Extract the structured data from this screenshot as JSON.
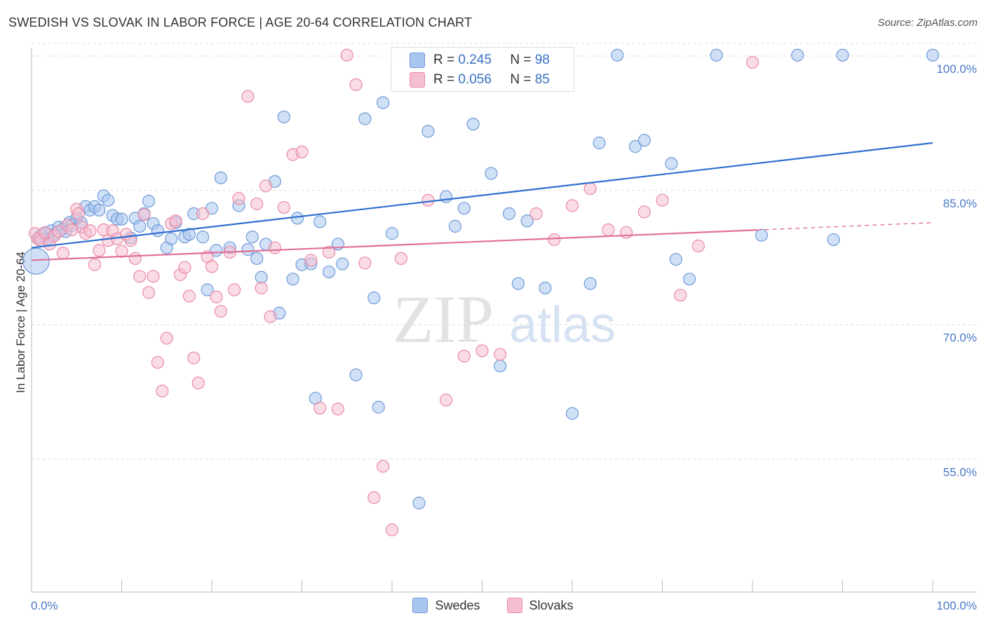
{
  "title": "SWEDISH VS SLOVAK IN LABOR FORCE | AGE 20-64 CORRELATION CHART",
  "source": "Source: ZipAtlas.com",
  "watermark": {
    "zip": "ZIP",
    "atlas": "atlas"
  },
  "legend_top": {
    "swedes": {
      "r_label": "R =",
      "r_value": "0.245",
      "n_label": "N =",
      "n_value": "98"
    },
    "slovaks": {
      "r_label": "R =",
      "r_value": "0.056",
      "n_label": "N =",
      "n_value": "85"
    }
  },
  "legend_bottom": {
    "swedes": "Swedes",
    "slovaks": "Slovaks"
  },
  "colors": {
    "blue_fill": "#a9c6ee",
    "blue_stroke": "#6f9ad8",
    "blue_line": "#2f6fd0",
    "pink_fill": "#f6bfd0",
    "pink_stroke": "#e98aa7",
    "pink_line": "#e0709a",
    "grid": "#dddddd",
    "tick_text": "#4a78c8"
  },
  "chart_data": {
    "type": "scatter",
    "title": "SWEDISH VS SLOVAK IN LABOR FORCE | AGE 20-64 CORRELATION CHART",
    "xlabel": "",
    "ylabel": "In Labor Force | Age 20-64",
    "xlim": [
      0,
      100
    ],
    "ylim": [
      40,
      102
    ],
    "x_ticks_labels": [
      "0.0%",
      "100.0%"
    ],
    "y_ticks": [
      55,
      70,
      85,
      100
    ],
    "y_tick_labels": [
      "55.0%",
      "70.0%",
      "85.0%",
      "100.0%"
    ],
    "grid": true,
    "series": [
      {
        "name": "Swedes",
        "r": 0.245,
        "n": 98,
        "trend": {
          "x": [
            0,
            100
          ],
          "y": [
            78.6,
            90.3
          ],
          "dashed_from": null
        },
        "points": [
          [
            0.5,
            77.1,
            2.2
          ],
          [
            0.8,
            79.7,
            1
          ],
          [
            1,
            80.0,
            1
          ],
          [
            1.2,
            79.4,
            1
          ],
          [
            1.5,
            80.2,
            1
          ],
          [
            1.8,
            79.6,
            1
          ],
          [
            2.2,
            80.5,
            1
          ],
          [
            2.6,
            80.1,
            1
          ],
          [
            3,
            80.9,
            1
          ],
          [
            3.5,
            80.7,
            1
          ],
          [
            3.8,
            80.4,
            1
          ],
          [
            4.2,
            81.4,
            1
          ],
          [
            4.5,
            81.1,
            1
          ],
          [
            5,
            81.9,
            1
          ],
          [
            5.5,
            81.4,
            1
          ],
          [
            6,
            83.2,
            1
          ],
          [
            6.5,
            82.8,
            1
          ],
          [
            7,
            83.2,
            1
          ],
          [
            7.5,
            82.8,
            1
          ],
          [
            8,
            84.4,
            1
          ],
          [
            8.5,
            83.9,
            1
          ],
          [
            9,
            82.2,
            1
          ],
          [
            9.5,
            81.8,
            1
          ],
          [
            10,
            81.8,
            1
          ],
          [
            11,
            79.7,
            1
          ],
          [
            11.5,
            81.9,
            1
          ],
          [
            12,
            81.0,
            1
          ],
          [
            12.5,
            82.4,
            1
          ],
          [
            13,
            83.8,
            1
          ],
          [
            13.5,
            81.3,
            1
          ],
          [
            14,
            80.5,
            1
          ],
          [
            15,
            78.6,
            1
          ],
          [
            15.5,
            79.6,
            1
          ],
          [
            16,
            81.4,
            1
          ],
          [
            17,
            79.8,
            1
          ],
          [
            17.5,
            80.1,
            1
          ],
          [
            18,
            82.4,
            1
          ],
          [
            19,
            79.8,
            1
          ],
          [
            19.5,
            73.9,
            1
          ],
          [
            20,
            83.0,
            1
          ],
          [
            20.5,
            78.3,
            1
          ],
          [
            21,
            86.4,
            1
          ],
          [
            22,
            78.6,
            1
          ],
          [
            23,
            83.3,
            1
          ],
          [
            24,
            78.4,
            1
          ],
          [
            24.5,
            79.8,
            1
          ],
          [
            25,
            77.4,
            1
          ],
          [
            25.5,
            75.3,
            1
          ],
          [
            26,
            79.0,
            1
          ],
          [
            27,
            86.0,
            1
          ],
          [
            27.5,
            71.3,
            1
          ],
          [
            28,
            93.2,
            1
          ],
          [
            29,
            75.1,
            1
          ],
          [
            29.5,
            81.9,
            1
          ],
          [
            30,
            76.7,
            1
          ],
          [
            31,
            76.8,
            1
          ],
          [
            31.5,
            61.8,
            1
          ],
          [
            32,
            81.5,
            1
          ],
          [
            33,
            75.9,
            1
          ],
          [
            34,
            79.0,
            1
          ],
          [
            34.5,
            76.8,
            1
          ],
          [
            36,
            64.4,
            1
          ],
          [
            37,
            93.0,
            1
          ],
          [
            38,
            73.0,
            1
          ],
          [
            38.5,
            60.8,
            1
          ],
          [
            39,
            94.8,
            1
          ],
          [
            40,
            80.2,
            1
          ],
          [
            41,
            100.1,
            1
          ],
          [
            43,
            50.1,
            1
          ],
          [
            44,
            91.6,
            1
          ],
          [
            44.5,
            100.1,
            1
          ],
          [
            46,
            84.3,
            1
          ],
          [
            47,
            81.0,
            1
          ],
          [
            48,
            83.0,
            1
          ],
          [
            49,
            92.4,
            1
          ],
          [
            50,
            100.1,
            1
          ],
          [
            51,
            86.9,
            1
          ],
          [
            52,
            65.4,
            1
          ],
          [
            53,
            82.4,
            1
          ],
          [
            54,
            74.6,
            1
          ],
          [
            55,
            81.6,
            1
          ],
          [
            56,
            100.1,
            1
          ],
          [
            57,
            74.1,
            1
          ],
          [
            60,
            60.1,
            1
          ],
          [
            62,
            74.6,
            1
          ],
          [
            63,
            90.3,
            1
          ],
          [
            65,
            100.1,
            1
          ],
          [
            67,
            89.9,
            1
          ],
          [
            68,
            90.6,
            1
          ],
          [
            71,
            88.0,
            1
          ],
          [
            71.5,
            77.3,
            1
          ],
          [
            73,
            75.1,
            1
          ],
          [
            76,
            100.1,
            1
          ],
          [
            81,
            80.0,
            1
          ],
          [
            85,
            100.1,
            1
          ],
          [
            89,
            79.5,
            1
          ],
          [
            90,
            100.1,
            1
          ],
          [
            100,
            100.1,
            1
          ]
        ]
      },
      {
        "name": "Slovaks",
        "r": 0.056,
        "n": 85,
        "trend": {
          "x": [
            0,
            100
          ],
          "y": [
            77.2,
            81.4
          ],
          "dashed_from": 80.5
        },
        "points": [
          [
            0.4,
            80.2,
            1
          ],
          [
            0.7,
            79.6,
            1
          ],
          [
            1,
            79.4,
            1
          ],
          [
            1.5,
            80.3,
            1
          ],
          [
            2,
            79.0,
            1
          ],
          [
            2.5,
            79.9,
            1
          ],
          [
            3,
            80.4,
            1
          ],
          [
            3.5,
            78.0,
            1
          ],
          [
            4,
            81.1,
            1
          ],
          [
            4.5,
            80.6,
            1
          ],
          [
            5,
            82.9,
            1
          ],
          [
            5.2,
            82.4,
            1
          ],
          [
            5.6,
            80.9,
            1
          ],
          [
            6,
            80.2,
            1
          ],
          [
            6.5,
            80.5,
            1
          ],
          [
            7,
            76.7,
            1
          ],
          [
            7.5,
            78.3,
            1
          ],
          [
            8,
            80.6,
            1
          ],
          [
            8.5,
            79.4,
            1
          ],
          [
            9,
            80.5,
            1
          ],
          [
            9.5,
            79.6,
            1
          ],
          [
            10,
            78.2,
            1
          ],
          [
            10.5,
            80.1,
            1
          ],
          [
            11,
            79.4,
            1
          ],
          [
            11.5,
            77.4,
            1
          ],
          [
            12,
            75.4,
            1
          ],
          [
            12.5,
            82.3,
            1
          ],
          [
            13,
            73.6,
            1
          ],
          [
            13.5,
            75.4,
            1
          ],
          [
            14,
            65.8,
            1
          ],
          [
            14.5,
            62.6,
            1
          ],
          [
            15,
            68.5,
            1
          ],
          [
            15.5,
            81.3,
            1
          ],
          [
            16,
            81.6,
            1
          ],
          [
            16.5,
            75.6,
            1
          ],
          [
            17,
            76.4,
            1
          ],
          [
            17.5,
            73.2,
            1
          ],
          [
            18,
            66.3,
            1
          ],
          [
            18.5,
            63.5,
            1
          ],
          [
            19,
            82.4,
            1
          ],
          [
            19.5,
            77.6,
            1
          ],
          [
            20,
            76.5,
            1
          ],
          [
            20.5,
            73.1,
            1
          ],
          [
            21,
            71.5,
            1
          ],
          [
            22,
            78.1,
            1
          ],
          [
            22.5,
            73.9,
            1
          ],
          [
            23,
            84.1,
            1
          ],
          [
            24,
            95.5,
            1
          ],
          [
            25,
            83.5,
            1
          ],
          [
            25.5,
            74.1,
            1
          ],
          [
            26,
            85.5,
            1
          ],
          [
            26.5,
            70.9,
            1
          ],
          [
            27,
            78.6,
            1
          ],
          [
            28,
            83.1,
            1
          ],
          [
            29,
            89.0,
            1
          ],
          [
            30,
            89.3,
            1
          ],
          [
            31,
            77.2,
            1
          ],
          [
            32,
            60.7,
            1
          ],
          [
            33,
            78.1,
            1
          ],
          [
            34,
            60.6,
            1
          ],
          [
            35,
            100.1,
            1
          ],
          [
            36,
            96.8,
            1
          ],
          [
            37,
            76.9,
            1
          ],
          [
            38,
            50.7,
            1
          ],
          [
            39,
            54.2,
            1
          ],
          [
            40,
            47.1,
            1
          ],
          [
            41,
            77.4,
            1
          ],
          [
            43,
            98.2,
            1
          ],
          [
            44,
            83.9,
            1
          ],
          [
            46,
            61.6,
            1
          ],
          [
            48,
            66.5,
            1
          ],
          [
            50,
            67.1,
            1
          ],
          [
            52,
            66.7,
            1
          ],
          [
            54,
            99.3,
            1
          ],
          [
            56,
            82.4,
            1
          ],
          [
            58,
            79.5,
            1
          ],
          [
            60,
            83.3,
            1
          ],
          [
            62,
            85.2,
            1
          ],
          [
            64,
            80.6,
            1
          ],
          [
            66,
            80.3,
            1
          ],
          [
            68,
            82.6,
            1
          ],
          [
            70,
            83.9,
            1
          ],
          [
            72,
            73.3,
            1
          ],
          [
            74,
            78.8,
            1
          ],
          [
            80,
            99.3,
            1
          ]
        ]
      }
    ]
  }
}
